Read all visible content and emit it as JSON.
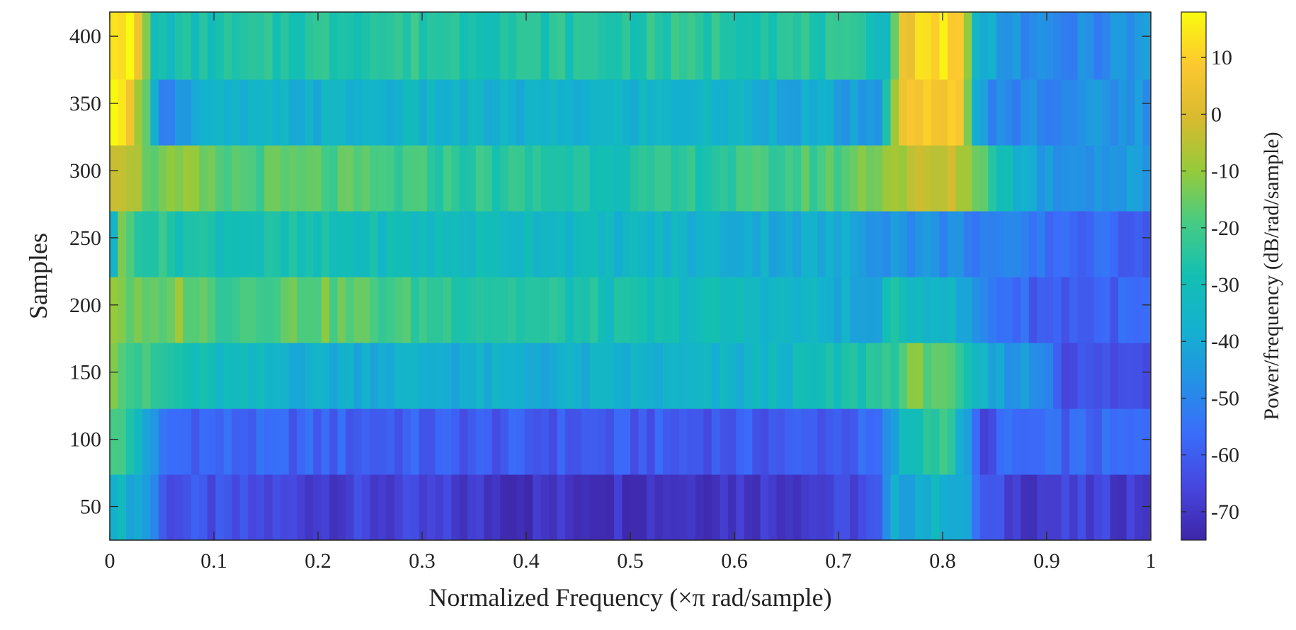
{
  "chart_data": {
    "type": "heatmap",
    "title": "",
    "xlabel": "Normalized Frequency  (×π rad/sample)",
    "ylabel": "Samples",
    "colorbar_label": "Power/frequency (dB/rad/sample)",
    "colormap": "parula",
    "xlim": [
      0,
      1
    ],
    "ylim": [
      25,
      418
    ],
    "clim": [
      -75,
      18
    ],
    "xticks": [
      0,
      0.1,
      0.2,
      0.3,
      0.4,
      0.5,
      0.6,
      0.7,
      0.8,
      0.9,
      1
    ],
    "xtick_labels": [
      "0",
      "0.1",
      "0.2",
      "0.3",
      "0.4",
      "0.5",
      "0.6",
      "0.7",
      "0.8",
      "0.9",
      "1"
    ],
    "yticks": [
      50,
      100,
      150,
      200,
      250,
      300,
      350,
      400
    ],
    "ytick_labels": [
      "50",
      "100",
      "150",
      "200",
      "250",
      "300",
      "350",
      "400"
    ],
    "cticks": [
      10,
      0,
      -10,
      -20,
      -30,
      -40,
      -50,
      -60,
      -70
    ],
    "ctick_labels": [
      "10",
      "0",
      "-10",
      "-20",
      "-30",
      "-40",
      "-50",
      "-60",
      "-70"
    ],
    "row_edges": [
      25,
      74,
      123,
      172,
      221,
      270,
      319,
      368,
      418
    ],
    "freq_segments": [
      {
        "x": [
          0.0,
          0.02,
          0.04,
          0.05,
          0.1,
          0.2,
          0.3,
          0.4,
          0.5,
          0.6,
          0.7,
          0.74,
          0.75,
          0.8,
          0.82,
          0.84,
          0.87,
          1.0
        ],
        "v": [
          -32,
          -38,
          -44,
          -62,
          -64,
          -67,
          -68,
          -71,
          -70,
          -69,
          -67,
          -63,
          -42,
          -35,
          -40,
          -62,
          -68,
          -68
        ]
      },
      {
        "x": [
          0.0,
          0.03,
          0.05,
          0.1,
          0.2,
          0.3,
          0.4,
          0.5,
          0.6,
          0.7,
          0.74,
          0.76,
          0.8,
          0.82,
          0.84,
          0.85,
          0.9,
          1.0
        ],
        "v": [
          -14,
          -34,
          -56,
          -58,
          -59,
          -60,
          -61,
          -61,
          -61,
          -60,
          -58,
          -35,
          -18,
          -40,
          -70,
          -58,
          -58,
          -58
        ]
      },
      {
        "x": [
          0.0,
          0.02,
          0.05,
          0.1,
          0.2,
          0.3,
          0.4,
          0.5,
          0.6,
          0.7,
          0.75,
          0.77,
          0.8,
          0.82,
          0.85,
          0.9,
          0.92,
          1.0
        ],
        "v": [
          -5,
          -20,
          -25,
          -33,
          -38,
          -38,
          -39,
          -38,
          -37,
          -30,
          -22,
          -15,
          -14,
          -30,
          -42,
          -48,
          -64,
          -64
        ]
      },
      {
        "x": [
          0.0,
          0.02,
          0.05,
          0.06,
          0.1,
          0.2,
          0.3,
          0.4,
          0.5,
          0.6,
          0.7,
          0.73,
          0.75,
          0.8,
          0.84,
          0.88,
          0.9,
          1.0
        ],
        "v": [
          -6,
          -15,
          -20,
          -10,
          -20,
          -15,
          -22,
          -25,
          -30,
          -32,
          -38,
          -45,
          -30,
          -33,
          -50,
          -58,
          -60,
          -58
        ]
      },
      {
        "x": [
          0.0,
          0.01,
          0.03,
          0.05,
          0.1,
          0.2,
          0.3,
          0.4,
          0.5,
          0.6,
          0.7,
          0.75,
          0.8,
          0.83,
          0.85,
          0.9,
          0.95,
          1.0
        ],
        "v": [
          -45,
          -15,
          -22,
          -25,
          -28,
          -30,
          -32,
          -32,
          -35,
          -38,
          -40,
          -45,
          -48,
          -50,
          -52,
          -55,
          -58,
          -58
        ]
      },
      {
        "x": [
          0.0,
          0.02,
          0.03,
          0.05,
          0.08,
          0.1,
          0.2,
          0.3,
          0.4,
          0.5,
          0.6,
          0.7,
          0.75,
          0.78,
          0.82,
          0.84,
          0.87,
          0.9,
          1.0
        ],
        "v": [
          2,
          -2,
          -12,
          -15,
          -13,
          -18,
          -18,
          -22,
          -25,
          -27,
          -23,
          -18,
          -8,
          -5,
          -5,
          -18,
          -35,
          -45,
          -45
        ]
      },
      {
        "x": [
          0.0,
          0.02,
          0.04,
          0.05,
          0.1,
          0.2,
          0.3,
          0.4,
          0.5,
          0.6,
          0.7,
          0.74,
          0.75,
          0.76,
          0.8,
          0.82,
          0.83,
          0.85,
          1.0
        ],
        "v": [
          14,
          10,
          -28,
          -50,
          -38,
          -37,
          -36,
          -38,
          -36,
          -36,
          -42,
          -50,
          -10,
          3,
          10,
          3,
          -40,
          -50,
          -45
        ]
      },
      {
        "x": [
          0.0,
          0.02,
          0.03,
          0.04,
          0.1,
          0.2,
          0.3,
          0.4,
          0.5,
          0.6,
          0.7,
          0.75,
          0.76,
          0.8,
          0.82,
          0.83,
          0.88,
          0.9,
          1.0
        ],
        "v": [
          18,
          14,
          2,
          -30,
          -28,
          -25,
          -24,
          -26,
          -25,
          -24,
          -26,
          -30,
          5,
          16,
          5,
          -35,
          -48,
          -52,
          -45
        ]
      }
    ]
  }
}
